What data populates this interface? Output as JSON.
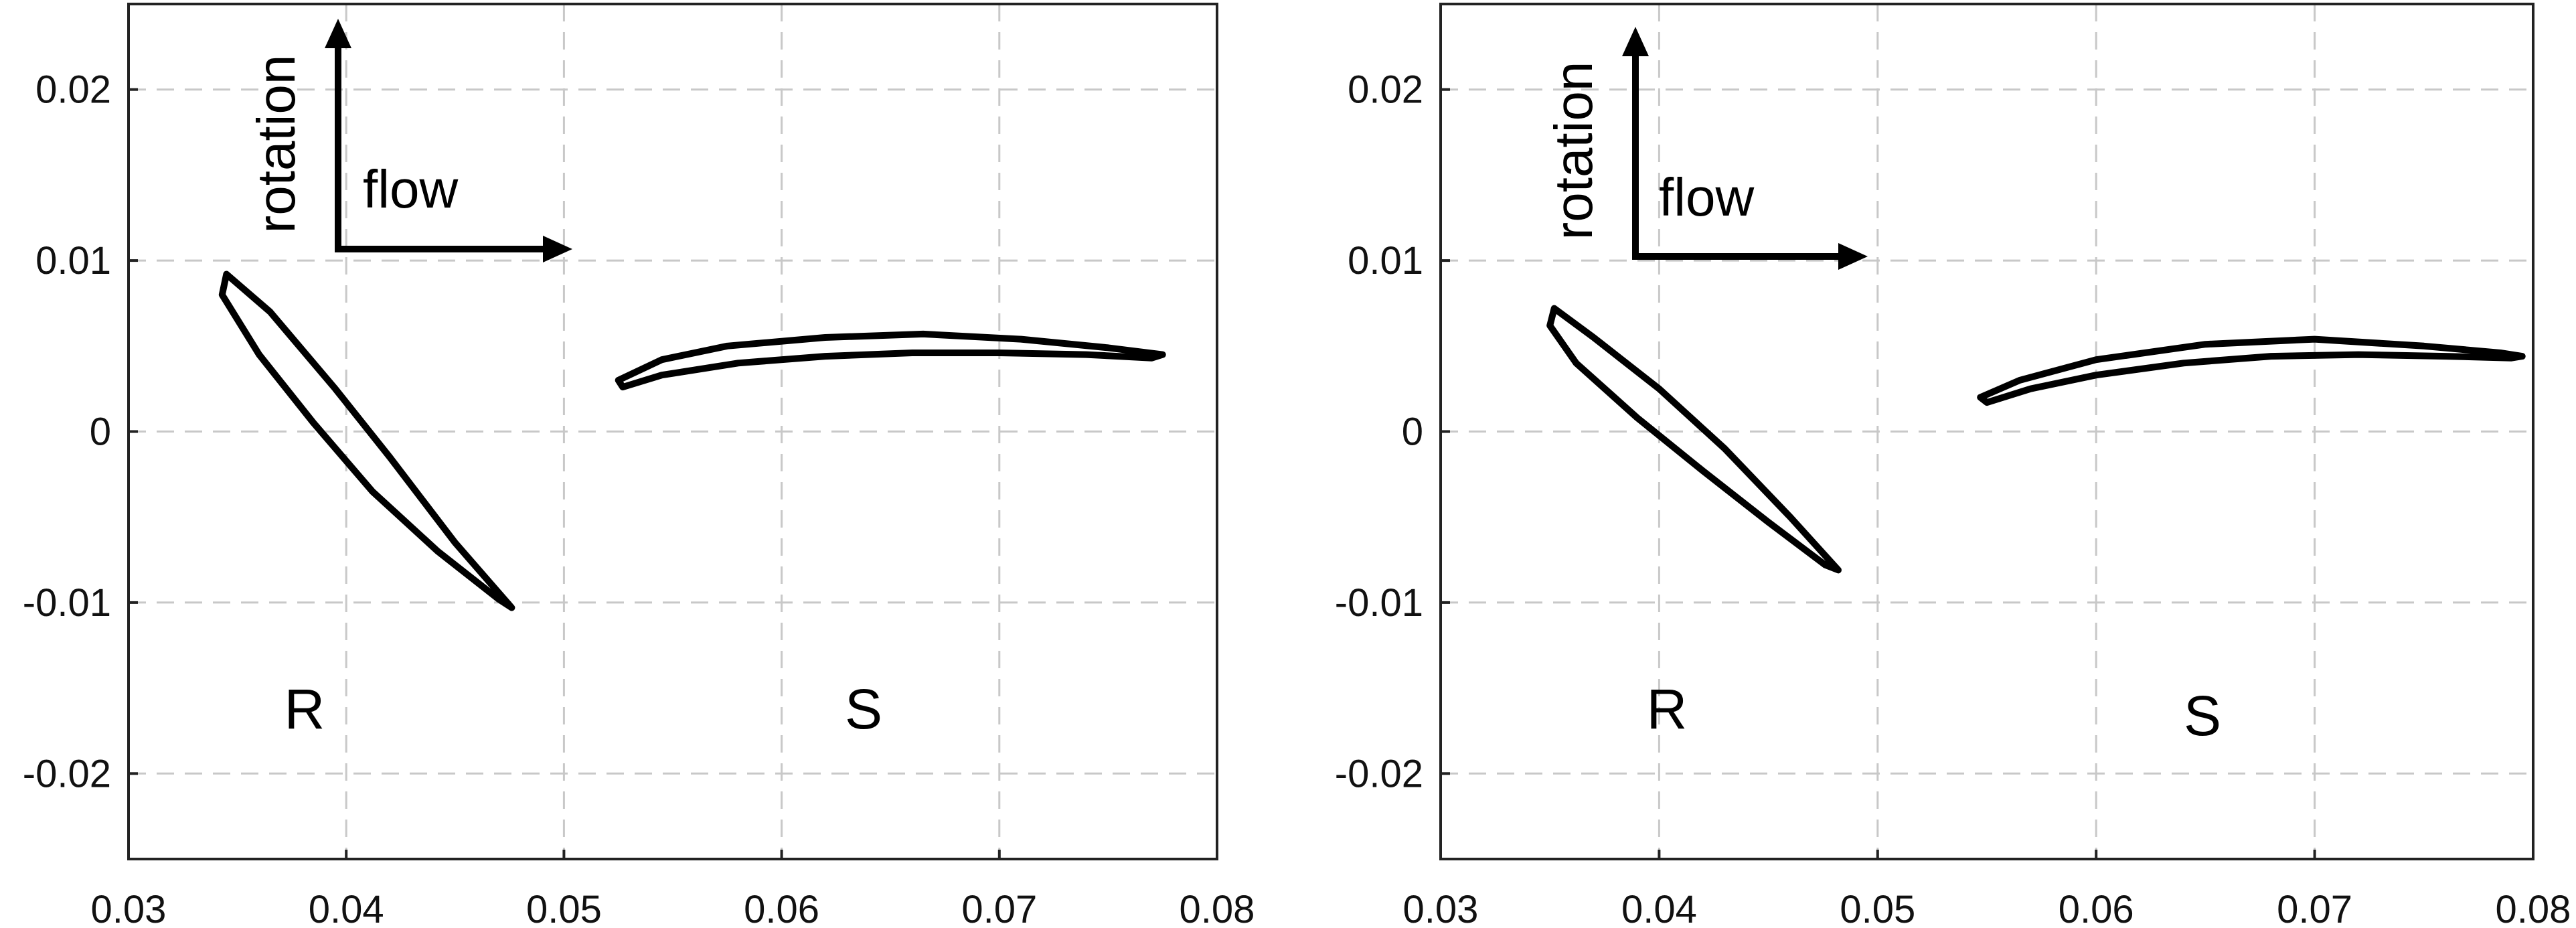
{
  "chart_data": [
    {
      "type": "line",
      "xlim": [
        0.03,
        0.08
      ],
      "ylim": [
        -0.025,
        0.025
      ],
      "xticks": [
        "0.03",
        "0.04",
        "0.05",
        "0.06",
        "0.07",
        "0.08"
      ],
      "yticks": [
        "0.02",
        "0.01",
        "0",
        "-0.01",
        "-0.02"
      ],
      "grid": true,
      "annotations": {
        "rotation": "rotation",
        "flow": "flow",
        "rotor": "R",
        "stator": "S"
      },
      "series": [
        {
          "name": "R",
          "color": "#000000",
          "points": [
            [
              0.0345,
              0.0092
            ],
            [
              0.0365,
              0.007
            ],
            [
              0.0395,
              0.0025
            ],
            [
              0.042,
              -0.0015
            ],
            [
              0.045,
              -0.0065
            ],
            [
              0.0476,
              -0.0103
            ],
            [
              0.047,
              -0.0098
            ],
            [
              0.0442,
              -0.007
            ],
            [
              0.0412,
              -0.0035
            ],
            [
              0.0385,
              0.0005
            ],
            [
              0.036,
              0.0045
            ],
            [
              0.0343,
              0.008
            ],
            [
              0.0345,
              0.0092
            ]
          ]
        },
        {
          "name": "S",
          "color": "#000000",
          "points": [
            [
              0.0525,
              0.003
            ],
            [
              0.0545,
              0.0042
            ],
            [
              0.0575,
              0.005
            ],
            [
              0.062,
              0.0055
            ],
            [
              0.0665,
              0.0057
            ],
            [
              0.071,
              0.0054
            ],
            [
              0.075,
              0.0049
            ],
            [
              0.0775,
              0.0045
            ],
            [
              0.077,
              0.0043
            ],
            [
              0.074,
              0.0045
            ],
            [
              0.07,
              0.0046
            ],
            [
              0.066,
              0.0046
            ],
            [
              0.062,
              0.0044
            ],
            [
              0.058,
              0.004
            ],
            [
              0.0545,
              0.0033
            ],
            [
              0.0527,
              0.0026
            ],
            [
              0.0525,
              0.003
            ]
          ]
        }
      ]
    },
    {
      "type": "line",
      "xlim": [
        0.03,
        0.08
      ],
      "ylim": [
        -0.025,
        0.025
      ],
      "xticks": [
        "0.03",
        "0.04",
        "0.05",
        "0.06",
        "0.07",
        "0.08"
      ],
      "yticks": [
        "0.02",
        "0.01",
        "0",
        "-0.01",
        "-0.02"
      ],
      "grid": true,
      "annotations": {
        "rotation": "rotation",
        "flow": "flow",
        "rotor": "R",
        "stator": "S"
      },
      "series": [
        {
          "name": "R",
          "color": "#000000",
          "points": [
            [
              0.0352,
              0.0072
            ],
            [
              0.037,
              0.0055
            ],
            [
              0.04,
              0.0025
            ],
            [
              0.043,
              -0.001
            ],
            [
              0.046,
              -0.005
            ],
            [
              0.0482,
              -0.0081
            ],
            [
              0.0476,
              -0.0078
            ],
            [
              0.045,
              -0.0053
            ],
            [
              0.042,
              -0.0023
            ],
            [
              0.039,
              0.0008
            ],
            [
              0.0362,
              0.004
            ],
            [
              0.035,
              0.0062
            ],
            [
              0.0352,
              0.0072
            ]
          ]
        },
        {
          "name": "S",
          "color": "#000000",
          "points": [
            [
              0.0547,
              0.002
            ],
            [
              0.0565,
              0.003
            ],
            [
              0.06,
              0.0042
            ],
            [
              0.065,
              0.0051
            ],
            [
              0.07,
              0.0054
            ],
            [
              0.075,
              0.005
            ],
            [
              0.0785,
              0.0046
            ],
            [
              0.0795,
              0.0044
            ],
            [
              0.079,
              0.0043
            ],
            [
              0.076,
              0.0044
            ],
            [
              0.072,
              0.0045
            ],
            [
              0.068,
              0.0044
            ],
            [
              0.064,
              0.004
            ],
            [
              0.06,
              0.0033
            ],
            [
              0.057,
              0.0025
            ],
            [
              0.055,
              0.0017
            ],
            [
              0.0547,
              0.002
            ]
          ]
        }
      ]
    }
  ]
}
